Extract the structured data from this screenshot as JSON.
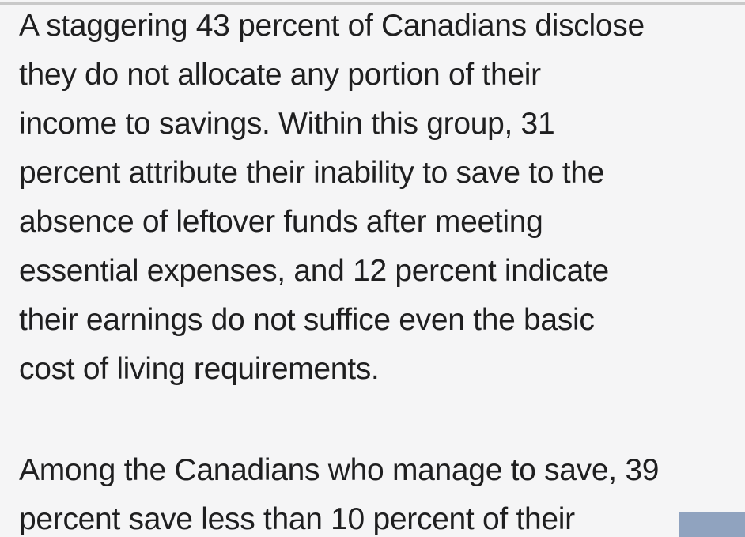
{
  "colors": {
    "background": "#f5f5f6",
    "text": "#1f1f20",
    "top_divider": "#c9c9c9",
    "corner_rect": "#90a3bf"
  },
  "article": {
    "paragraphs": [
      {
        "text": "A staggering 43 percent of Canadians disclose they do not allocate any portion of their income to savings. Within this group, 31 percent attribute their inability to save to the absence of leftover funds after meeting essential expenses, and 12 percent indicate their earnings do not suffice even the basic cost of living requirements.",
        "lines": [
          "A staggering 43 percent of Canadians disclose",
          "they do not allocate any portion of their",
          "income to savings. Within this group, 31",
          "percent attribute their inability to save to the",
          "absence of leftover funds after meeting",
          "essential expenses, and 12 percent indicate",
          "their earnings do not suffice even the basic",
          "cost of living requirements."
        ]
      },
      {
        "text": "Among the Canadians who manage to save, 39 percent save less than 10 percent of their",
        "lines": [
          "Among the Canadians who manage to save, 39",
          "percent save less than 10 percent of their"
        ]
      }
    ]
  }
}
